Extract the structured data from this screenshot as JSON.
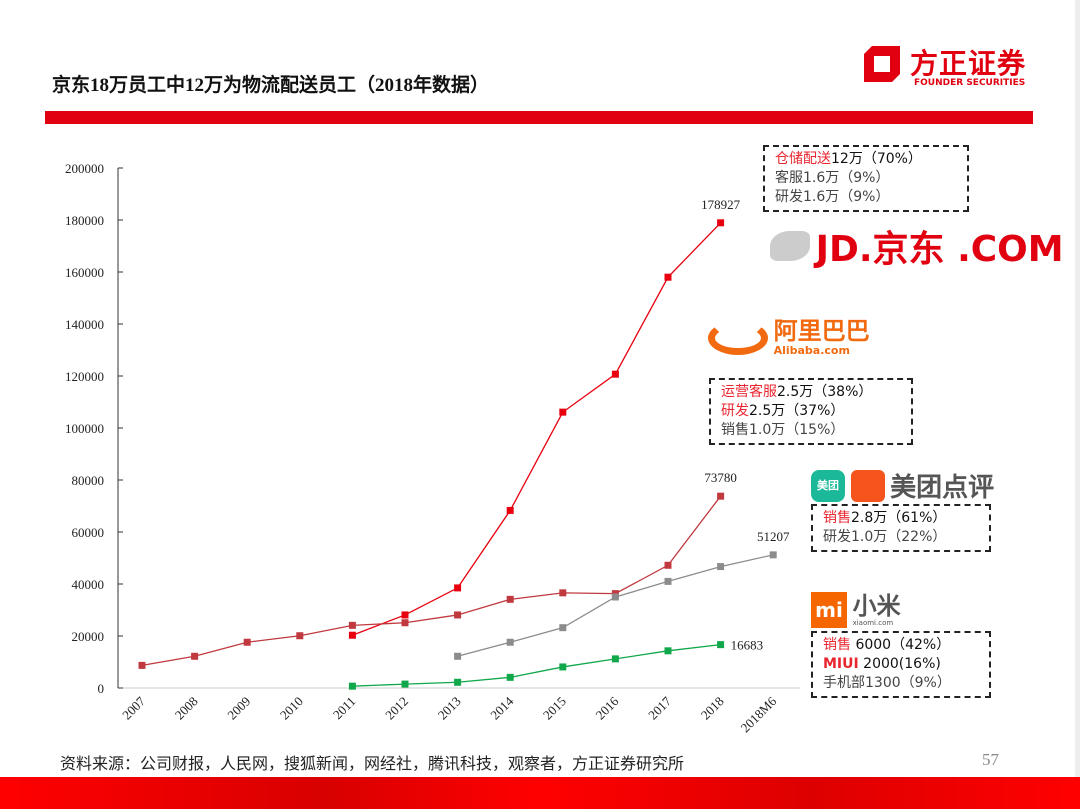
{
  "header": {
    "title": "京东18万员工中12万为物流配送员工（2018年数据）",
    "logo_cn": "方正证券",
    "logo_en": "FOUNDER SECURITIES"
  },
  "colors": {
    "accent": "#e00010",
    "jd": "#e8000f",
    "alibaba": "#c0393f",
    "meituan": "#8c8c8c",
    "xiaomi": "#10a84a"
  },
  "chart_data": {
    "type": "line",
    "categories": [
      "2007",
      "2008",
      "2009",
      "2010",
      "2011",
      "2012",
      "2013",
      "2014",
      "2015",
      "2016",
      "2017",
      "2018",
      "2018M6"
    ],
    "ylim": [
      0,
      200000
    ],
    "yticks": [
      "0",
      "20000",
      "40000",
      "60000",
      "80000",
      "100000",
      "120000",
      "140000",
      "160000",
      "180000",
      "200000"
    ],
    "grid": false,
    "series": [
      {
        "key": "jd",
        "values": [
          null,
          null,
          null,
          null,
          20300,
          28100,
          38500,
          68300,
          106100,
          120700,
          158000,
          178927,
          null
        ],
        "end_label": "178927"
      },
      {
        "key": "alibaba",
        "values": [
          8700,
          12200,
          17600,
          20100,
          24100,
          25100,
          28100,
          34100,
          36600,
          36300,
          47200,
          73780,
          null
        ],
        "end_label": "73780"
      },
      {
        "key": "meituan",
        "values": [
          null,
          null,
          null,
          null,
          null,
          null,
          12200,
          17600,
          23200,
          35000,
          41000,
          46700,
          51207
        ],
        "end_label": "51207"
      },
      {
        "key": "xiaomi",
        "values": [
          null,
          null,
          null,
          null,
          700,
          1500,
          2200,
          4100,
          8100,
          11200,
          14300,
          16683,
          null
        ],
        "end_label": "16683"
      }
    ]
  },
  "annotations": {
    "jd": {
      "brand": "JD.京东 .COM",
      "lines": [
        {
          "hl": "仓储配送",
          "rest": "12万（70%）"
        },
        {
          "hl": "",
          "rest": "客服1.6万（9%）"
        },
        {
          "hl": "",
          "rest": "研发1.6万（9%）"
        }
      ]
    },
    "alibaba": {
      "brand": "阿里巴巴",
      "brand_en": "Alibaba.com",
      "lines": [
        {
          "hl": "运营客服",
          "rest": "2.5万（38%）"
        },
        {
          "hl": "研发",
          "rest": "2.5万（37%）"
        },
        {
          "hl": "",
          "rest": "销售1.0万（15%）"
        }
      ]
    },
    "meituan": {
      "brand": "美团点评",
      "icon_text": "美团",
      "lines": [
        {
          "hl": "销售",
          "rest": "2.8万（61%）"
        },
        {
          "hl": "",
          "rest": "研发1.0万（22%）"
        }
      ]
    },
    "xiaomi": {
      "brand": "小米",
      "brand_en": "xiaomi.com",
      "icon_text": "mi",
      "lines": [
        {
          "hl": "销售",
          "rest": " 6000（42%）"
        },
        {
          "hl": "MIUI",
          "rest": " 2000(16%)"
        },
        {
          "hl": "",
          "rest": "手机部1300（9%）"
        }
      ]
    }
  },
  "footer": {
    "source": "资料来源：公司财报，人民网，搜狐新闻，网经社，腾讯科技，观察者，方正证券研究所",
    "page": "57"
  }
}
